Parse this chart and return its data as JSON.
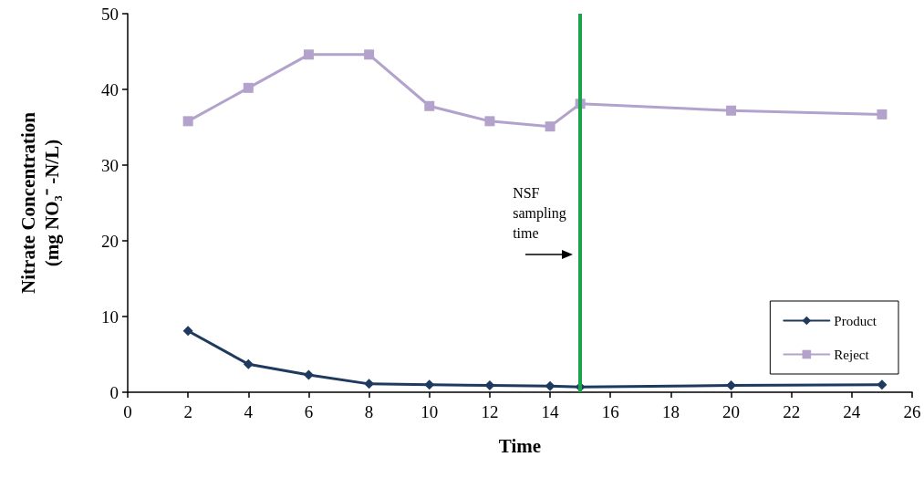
{
  "chart_data": {
    "type": "line",
    "xlabel": "Time",
    "ylabel": "Nitrate Concentration\n(mg NO₃⁻ -N/L)",
    "x": [
      2,
      4,
      6,
      8,
      10,
      12,
      14,
      15,
      20,
      25
    ],
    "series": [
      {
        "name": "Product",
        "color": "#1f3a5f",
        "marker": "diamond",
        "values": [
          8.1,
          3.7,
          2.3,
          1.1,
          1.0,
          0.9,
          0.8,
          0.7,
          0.9,
          1.0
        ]
      },
      {
        "name": "Reject",
        "color": "#b3a2cc",
        "marker": "square",
        "values": [
          35.8,
          40.2,
          44.6,
          44.6,
          37.8,
          35.8,
          35.1,
          38.1,
          37.2,
          36.7
        ]
      }
    ],
    "xlim": [
      0,
      26
    ],
    "xticks": [
      0,
      2,
      4,
      6,
      8,
      10,
      12,
      14,
      16,
      18,
      20,
      22,
      24,
      26
    ],
    "ylim": [
      0,
      50
    ],
    "yticks": [
      0,
      10,
      20,
      30,
      40,
      50
    ],
    "ref_lines": [
      {
        "axis": "x",
        "value": 15,
        "label": "NSF sampling time",
        "color": "#1aa34a",
        "line_style": "solid"
      }
    ],
    "grid": false,
    "legend": "bottom right",
    "line_style": "solid"
  }
}
